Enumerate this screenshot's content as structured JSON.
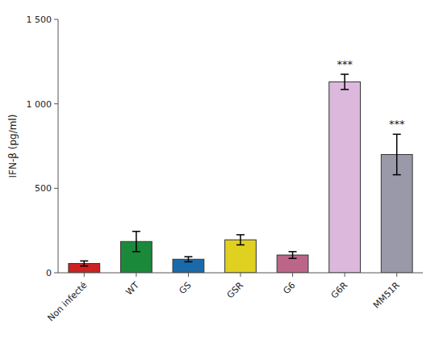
{
  "chart_data": {
    "type": "bar",
    "categories": [
      "Non infecté",
      "WT",
      "GS",
      "GSR",
      "G6",
      "G6R",
      "MM51R"
    ],
    "values": [
      55,
      185,
      80,
      195,
      105,
      1130,
      700
    ],
    "errors": [
      15,
      60,
      15,
      30,
      20,
      45,
      120
    ],
    "colors": [
      "#cc2222",
      "#1a8a3a",
      "#1a6aaa",
      "#e0d020",
      "#bb6688",
      "#ddb8dd",
      "#9999aa"
    ],
    "y_label": "IFN-β (pg/ml)",
    "ylim": [
      0,
      1500
    ],
    "yticks": [
      0,
      500,
      {
        "value": 1000,
        "label": "1 000"
      },
      {
        "value": 1500,
        "label": "1 500"
      }
    ],
    "annotations": [
      {
        "text": "***",
        "category": "G6R"
      },
      {
        "text": "***",
        "category": "MM51R"
      }
    ],
    "grid": false
  }
}
